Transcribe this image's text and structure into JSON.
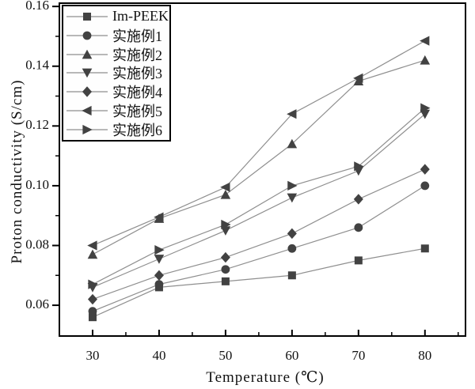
{
  "figure": {
    "background": "#ffffff",
    "axis_color": "#000000",
    "line_color": "#8f8f8f",
    "marker_color": "#424242",
    "text_color": "#111111"
  },
  "chart_data": {
    "type": "line",
    "title": "",
    "xlabel": "Temperature (℃)",
    "ylabel": "Proton conductivity (S/cm)",
    "grid": false,
    "legend_position": "top-left",
    "x": [
      30,
      40,
      50,
      60,
      70,
      80
    ],
    "x_ticks": [
      30,
      40,
      50,
      60,
      70,
      80
    ],
    "x_minor_ticks": [
      35,
      45,
      55,
      65,
      75,
      85
    ],
    "y_ticks": [
      0.06,
      0.08,
      0.1,
      0.12,
      0.14,
      0.16
    ],
    "y_minor_ticks": [
      0.07,
      0.09,
      0.11,
      0.13,
      0.15
    ],
    "xlim": [
      25,
      86.1
    ],
    "ylim": [
      0.0497,
      0.1611
    ],
    "series": [
      {
        "name": "Im-PEEK",
        "marker": "square",
        "values": [
          0.056,
          0.066,
          0.068,
          0.07,
          0.075,
          0.079
        ]
      },
      {
        "name": "实施例1",
        "marker": "circle",
        "values": [
          0.058,
          0.067,
          0.072,
          0.079,
          0.086,
          0.1
        ]
      },
      {
        "name": "实施例2",
        "marker": "triangle-up",
        "values": [
          0.077,
          0.089,
          0.097,
          0.114,
          0.135,
          0.142
        ]
      },
      {
        "name": "实施例3",
        "marker": "triangle-down",
        "values": [
          0.066,
          0.0755,
          0.085,
          0.096,
          0.105,
          0.124
        ]
      },
      {
        "name": "实施例4",
        "marker": "diamond",
        "values": [
          0.062,
          0.07,
          0.076,
          0.084,
          0.0955,
          0.1055
        ]
      },
      {
        "name": "实施例5",
        "marker": "triangle-left",
        "values": [
          0.08,
          0.0895,
          0.0995,
          0.124,
          0.136,
          0.1485
        ]
      },
      {
        "name": "实施例6",
        "marker": "triangle-right",
        "values": [
          0.067,
          0.0785,
          0.087,
          0.1,
          0.1065,
          0.126
        ]
      }
    ]
  }
}
